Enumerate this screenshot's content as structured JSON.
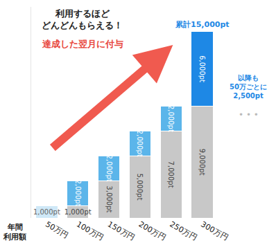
{
  "chart_data": {
    "type": "bar",
    "stacked": true,
    "title": [
      "利用するほど",
      "どんどんもらえる！"
    ],
    "subtitle": "達成した翌月に付与",
    "x_label": [
      "年間",
      "利用額"
    ],
    "categories": [
      "50万円",
      "100万円",
      "150万円",
      "200万円",
      "250万円",
      "300万円"
    ],
    "series": [
      {
        "color": "#c8c8c8",
        "values": [
          null,
          1000,
          3000,
          5000,
          7000,
          9000
        ],
        "value_labels": [
          null,
          "1,000pt",
          "3,000pt",
          "5,000pt",
          "7,000pt",
          "9,000pt"
        ]
      },
      {
        "colors": [
          "#cfe8f7",
          "#5bb5ea",
          "#5bb5ea",
          "#5bb5ea",
          "#5bb5ea",
          "#1e88e5"
        ],
        "values": [
          1000,
          2000,
          2000,
          2000,
          2000,
          6000
        ],
        "value_labels": [
          "1,000pt",
          "2,000pt",
          "2,000pt",
          "2,000pt",
          "2,000pt",
          "6,000pt"
        ]
      }
    ],
    "data_labels": true,
    "tick_labels": "x",
    "ylim": [
      0,
      17000
    ],
    "annotations": [
      {
        "text": "累計15,000pt",
        "category": "300万円"
      },
      {
        "text": [
          "以降も",
          "50万ごとに",
          "2,500pt"
        ]
      },
      {
        "text": "• • •"
      }
    ]
  }
}
